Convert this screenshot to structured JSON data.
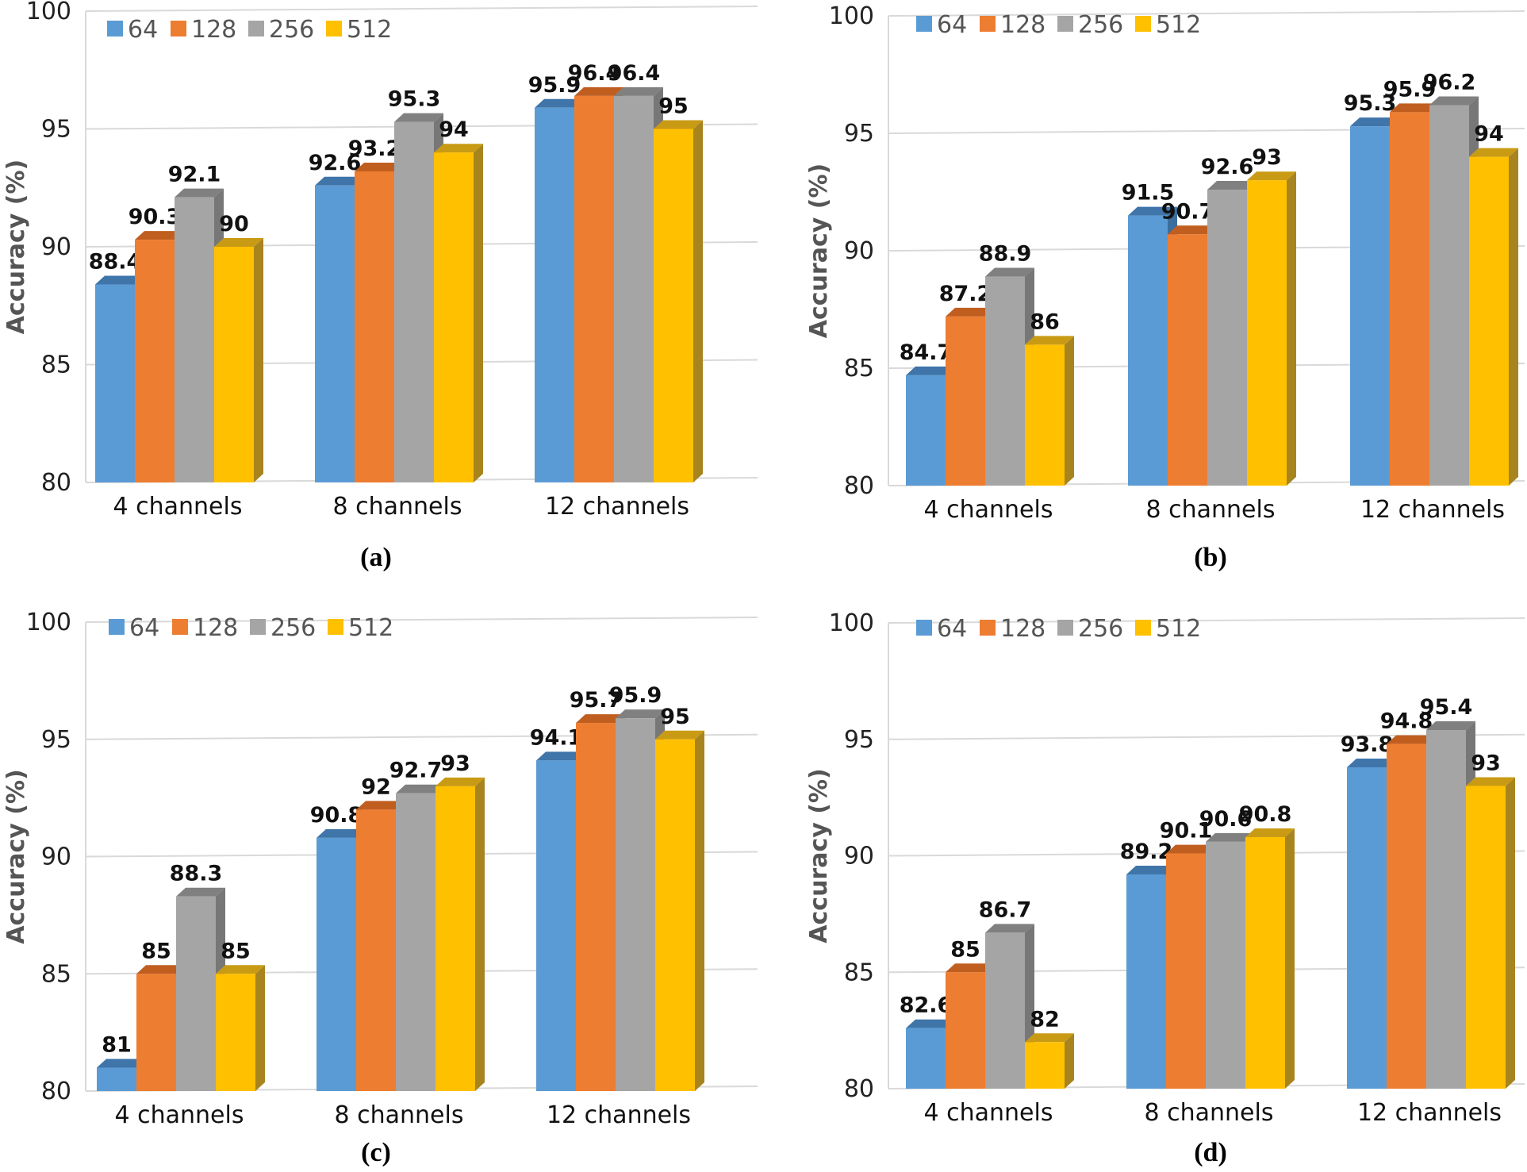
{
  "chart_data": [
    {
      "type": "bar",
      "panel_label": "(a)",
      "categories": [
        "4 channels",
        "8 channels",
        "12 channels"
      ],
      "series": [
        {
          "name": "64",
          "values": [
            88.4,
            92.6,
            95.9
          ]
        },
        {
          "name": "128",
          "values": [
            90.3,
            93.2,
            96.4
          ]
        },
        {
          "name": "256",
          "values": [
            92.1,
            95.3,
            96.4
          ]
        },
        {
          "name": "512",
          "values": [
            90,
            94,
            95
          ]
        }
      ],
      "ylabel": "Accuracy (%)",
      "xlabel": "",
      "ylim": [
        80,
        100
      ],
      "yticks": [
        "80",
        "85",
        "90",
        "95",
        "100"
      ],
      "legend": "top-left"
    },
    {
      "type": "bar",
      "panel_label": "(b)",
      "categories": [
        "4 channels",
        "8 channels",
        "12 channels"
      ],
      "series": [
        {
          "name": "64",
          "values": [
            84.7,
            91.5,
            95.3
          ]
        },
        {
          "name": "128",
          "values": [
            87.2,
            90.7,
            95.9
          ]
        },
        {
          "name": "256",
          "values": [
            88.9,
            92.6,
            96.2
          ]
        },
        {
          "name": "512",
          "values": [
            86,
            93,
            94
          ]
        }
      ],
      "ylabel": "Accuracy (%)",
      "xlabel": "",
      "ylim": [
        80,
        100
      ],
      "yticks": [
        "80",
        "85",
        "90",
        "95",
        "100"
      ],
      "legend": "top-left"
    },
    {
      "type": "bar",
      "panel_label": "(c)",
      "categories": [
        "4 channels",
        "8 channels",
        "12 channels"
      ],
      "series": [
        {
          "name": "64",
          "values": [
            81,
            90.8,
            94.1
          ]
        },
        {
          "name": "128",
          "values": [
            85,
            92,
            95.7
          ]
        },
        {
          "name": "256",
          "values": [
            88.3,
            92.7,
            95.9
          ]
        },
        {
          "name": "512",
          "values": [
            85,
            93,
            95
          ]
        }
      ],
      "ylabel": "Accuracy (%)",
      "xlabel": "",
      "ylim": [
        80,
        100
      ],
      "yticks": [
        "80",
        "85",
        "90",
        "95",
        "100"
      ],
      "legend": "top-left"
    },
    {
      "type": "bar",
      "panel_label": "(d)",
      "categories": [
        "4 channels",
        "8 channels",
        "12 channels"
      ],
      "series": [
        {
          "name": "64",
          "values": [
            82.6,
            89.2,
            93.8
          ]
        },
        {
          "name": "128",
          "values": [
            85,
            90.1,
            94.8
          ]
        },
        {
          "name": "256",
          "values": [
            86.7,
            90.6,
            95.4
          ]
        },
        {
          "name": "512",
          "values": [
            82,
            90.8,
            93
          ]
        }
      ],
      "ylabel": "Accuracy (%)",
      "xlabel": "",
      "ylim": [
        80,
        100
      ],
      "yticks": [
        "80",
        "85",
        "90",
        "95",
        "100"
      ],
      "legend": "top-left"
    }
  ],
  "colors": {
    "series": [
      "#5b9bd5",
      "#ed7d31",
      "#a5a5a5",
      "#ffc000"
    ],
    "series_top": [
      "#3f75a9",
      "#c05e20",
      "#808080",
      "#c99b15"
    ],
    "series_side": [
      "#3a6e9e",
      "#b5581c",
      "#777777",
      "#a8841f"
    ],
    "grid": "#d9d9d9"
  }
}
